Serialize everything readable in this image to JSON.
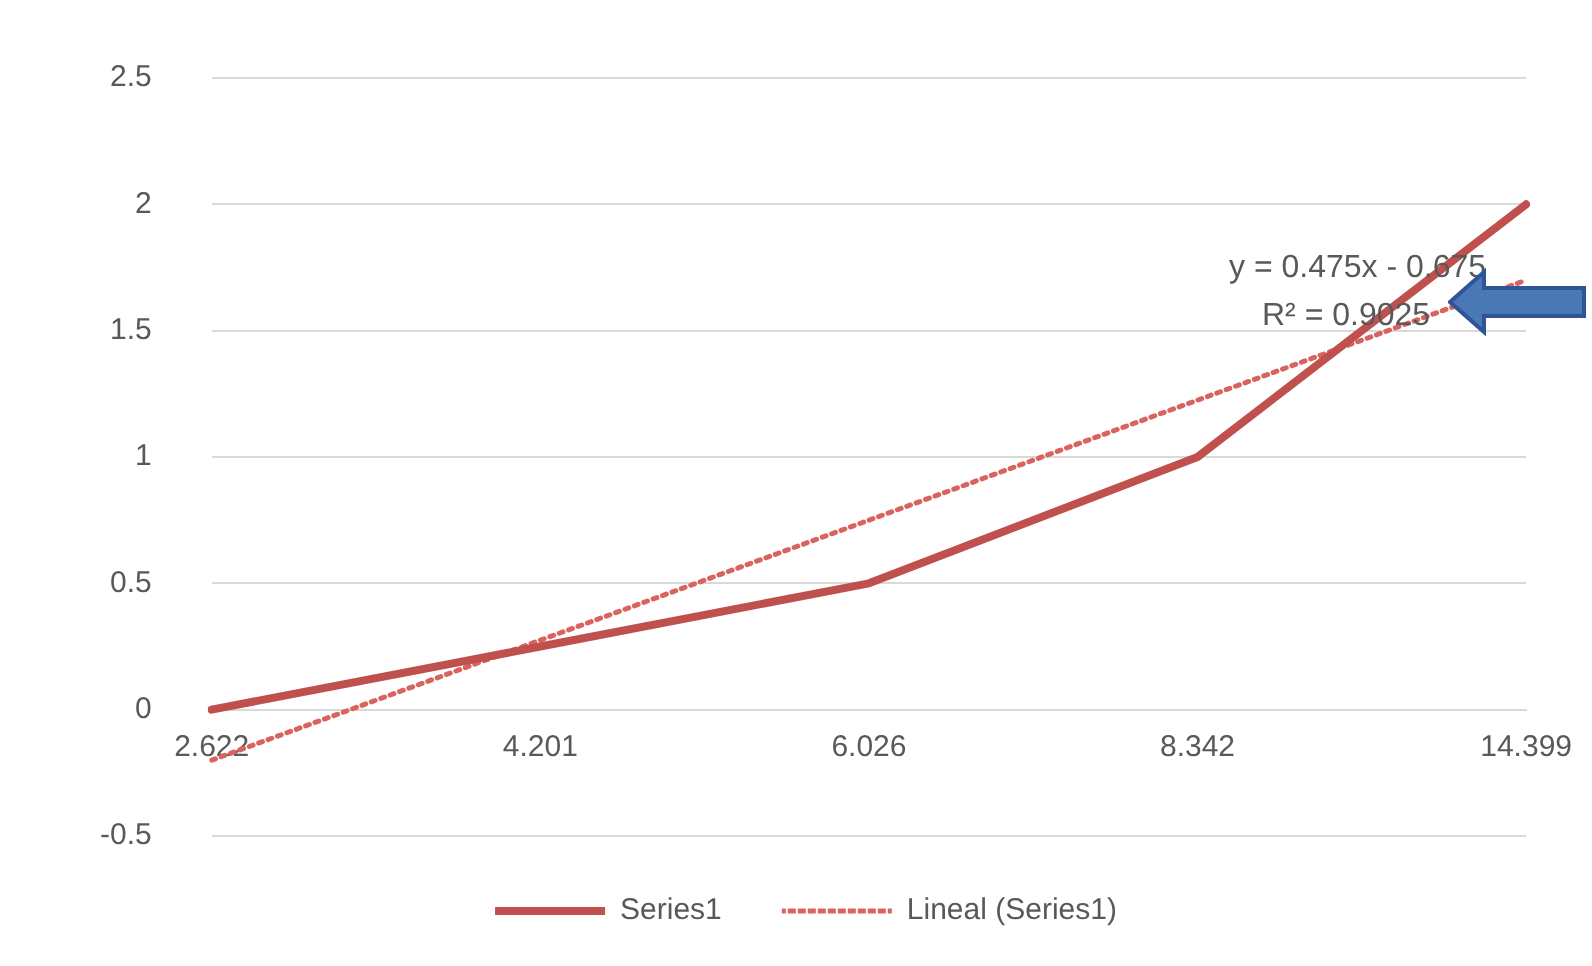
{
  "chart_data": {
    "type": "line",
    "categories": [
      "2.622",
      "4.201",
      "6.026",
      "8.342",
      "14.399"
    ],
    "series": [
      {
        "name": "Series1",
        "color": "#c0504d",
        "values": [
          0,
          0.25,
          0.5,
          1,
          2
        ],
        "line_style": "solid"
      },
      {
        "name": "Lineal (Series1)",
        "color": "#d9645f",
        "values": [
          -0.2,
          0.275,
          0.75,
          1.225,
          1.7
        ],
        "line_style": "dotted"
      }
    ],
    "ylim": [
      -0.5,
      2.5
    ],
    "yticks": [
      -0.5,
      0,
      0.5,
      1,
      1.5,
      2,
      2.5
    ],
    "grid": "y",
    "legend": "bottom",
    "marker": "none",
    "annotations": [
      "y = 0.475x - 0.675",
      "R² = 0.9025"
    ]
  }
}
